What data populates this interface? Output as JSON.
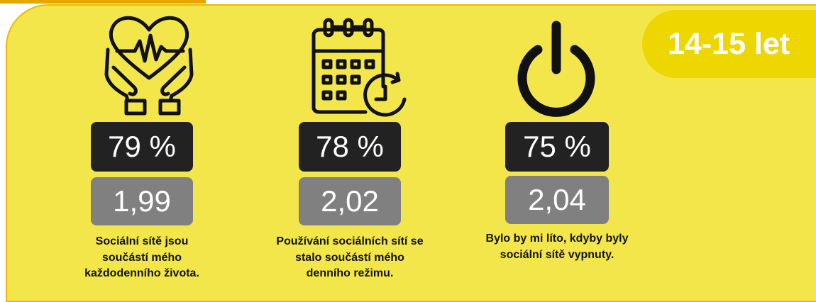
{
  "badge": "14-15 let",
  "items": [
    {
      "percent": "79 %",
      "score": "1,99",
      "caption": [
        "Sociální sítě jsou",
        "součástí mého",
        "každodenního života."
      ]
    },
    {
      "percent": "78 %",
      "score": "2,02",
      "caption": [
        "Používání sociálních sítí se",
        "stalo součástí mého",
        "denního režimu."
      ]
    },
    {
      "percent": "75 %",
      "score": "2,04",
      "caption": [
        "Bylo by mi líto, kdyby byly",
        "sociální sítě vypnuty."
      ]
    }
  ]
}
